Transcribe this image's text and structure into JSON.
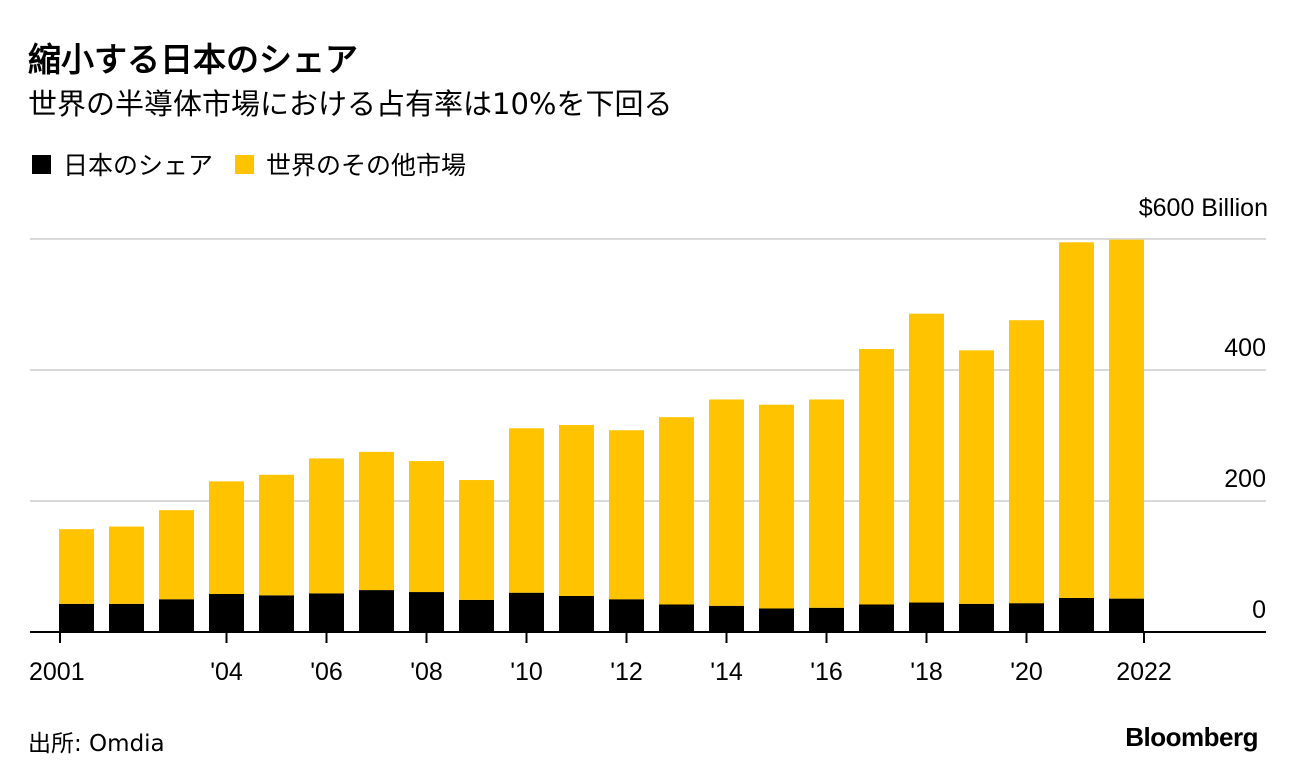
{
  "header": {
    "title": "縮小する日本のシェア",
    "subtitle": "世界の半導体市場における占有率は10%を下回る"
  },
  "legend": [
    {
      "label": "日本のシェア",
      "color": "#000000"
    },
    {
      "label": "世界のその他市場",
      "color": "#FFC300"
    }
  ],
  "footer": {
    "source": "出所: Omdia",
    "brand": "Bloomberg"
  },
  "chart_data": {
    "type": "bar",
    "stacked": true,
    "title": "縮小する日本のシェア",
    "subtitle": "世界の半導体市場における占有率は10%を下回る",
    "unit_label": "$600 Billion",
    "xlabel": "",
    "ylabel": "",
    "ylim": [
      0,
      600
    ],
    "y_ticks": [
      {
        "value": 0,
        "label": "0"
      },
      {
        "value": 200,
        "label": "200"
      },
      {
        "value": 400,
        "label": "400"
      },
      {
        "value": 600,
        "label": "$600 Billion"
      }
    ],
    "y_axis_side": "right",
    "grid": true,
    "legend_position": "top-left",
    "categories": [
      "2001",
      "2002",
      "2003",
      "2004",
      "2005",
      "2006",
      "2007",
      "2008",
      "2009",
      "2010",
      "2011",
      "2012",
      "2013",
      "2014",
      "2015",
      "2016",
      "2017",
      "2018",
      "2019",
      "2020",
      "2021",
      "2022"
    ],
    "x_ticks": [
      {
        "category": "2001",
        "label": "2001",
        "anchor": "start"
      },
      {
        "category": "2004",
        "label": "'04",
        "anchor": "middle"
      },
      {
        "category": "2006",
        "label": "'06",
        "anchor": "middle"
      },
      {
        "category": "2008",
        "label": "'08",
        "anchor": "middle"
      },
      {
        "category": "2010",
        "label": "'10",
        "anchor": "middle"
      },
      {
        "category": "2012",
        "label": "'12",
        "anchor": "middle"
      },
      {
        "category": "2014",
        "label": "'14",
        "anchor": "middle"
      },
      {
        "category": "2016",
        "label": "'16",
        "anchor": "middle"
      },
      {
        "category": "2018",
        "label": "'18",
        "anchor": "middle"
      },
      {
        "category": "2020",
        "label": "'20",
        "anchor": "middle"
      },
      {
        "category": "2022",
        "label": "2022",
        "anchor": "end"
      }
    ],
    "series": [
      {
        "name": "日本のシェア",
        "color": "#000000",
        "values": [
          43,
          43,
          50,
          58,
          56,
          59,
          64,
          61,
          49,
          60,
          55,
          50,
          42,
          40,
          36,
          37,
          42,
          45,
          43,
          44,
          52,
          51
        ]
      },
      {
        "name": "世界のその他市場",
        "color": "#FFC300",
        "values": [
          114,
          118,
          136,
          172,
          184,
          206,
          211,
          200,
          183,
          251,
          261,
          258,
          286,
          315,
          311,
          318,
          390,
          441,
          387,
          432,
          543,
          548
        ]
      }
    ],
    "colors": {
      "grid": "#D9D9D9",
      "axis": "#000000"
    }
  }
}
